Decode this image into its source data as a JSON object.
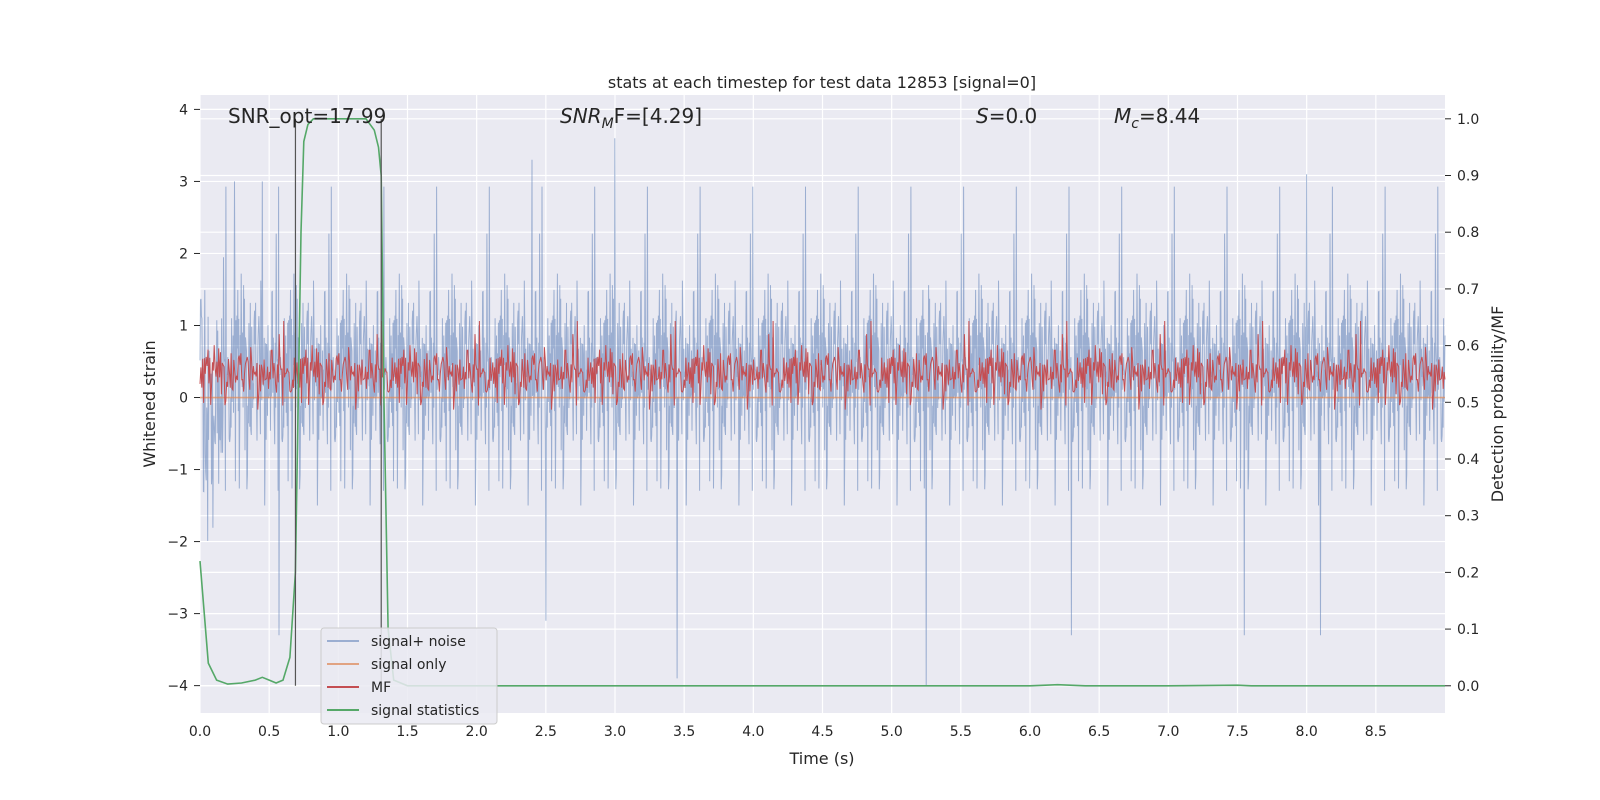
{
  "chart_data": {
    "type": "line",
    "title": "stats at each timestep for test data 12853 [signal=0]",
    "xlabel": "Time (s)",
    "ylabel_left": "Whitened strain",
    "ylabel_right": "Detection probability/MF",
    "xlim": [
      0,
      9.0
    ],
    "ylim_left": [
      -4.38,
      4.2
    ],
    "ylim_right": [
      -0.048,
      1.042
    ],
    "x_ticks": [
      "0.0",
      "0.5",
      "1.0",
      "1.5",
      "2.0",
      "2.5",
      "3.0",
      "3.5",
      "4.0",
      "4.5",
      "5.0",
      "5.5",
      "6.0",
      "6.5",
      "7.0",
      "7.5",
      "8.0",
      "8.5"
    ],
    "y_ticks_left": [
      "4",
      "3",
      "2",
      "1",
      "0",
      "−1",
      "−2",
      "−3",
      "−4"
    ],
    "y_ticks_right": [
      "1.0",
      "0.9",
      "0.8",
      "0.7",
      "0.6",
      "0.5",
      "0.4",
      "0.3",
      "0.2",
      "0.1",
      "0.0"
    ],
    "grid": true,
    "background": "#eaeaf2",
    "annotations": {
      "snr_opt": "SNR_opt=17.99",
      "snr_mf_main": "SNR",
      "snr_mf_sub": "M",
      "snr_mf_tail": "F=[4.29]",
      "s_italic": "S",
      "s_value": "=0.0",
      "mc_main": "M",
      "mc_sub": "c",
      "mc_value": "=8.44"
    },
    "markers_x": [
      0.69,
      1.31
    ],
    "series": [
      {
        "name": "signal+ noise",
        "color": "#4c72b0",
        "alpha": 0.5,
        "axis": "left",
        "kind": "noise",
        "std": 0.85,
        "extremes": [
          [
            0.25,
            3.0
          ],
          [
            0.45,
            3.0
          ],
          [
            0.57,
            -3.3
          ],
          [
            2.4,
            3.3
          ],
          [
            2.5,
            -3.1
          ],
          [
            3.0,
            3.6
          ],
          [
            3.45,
            3.8
          ],
          [
            3.45,
            -3.9
          ],
          [
            5.25,
            3.8
          ],
          [
            5.25,
            -4.0
          ],
          [
            6.3,
            -3.3
          ],
          [
            7.55,
            -3.3
          ],
          [
            8.0,
            3.1
          ],
          [
            8.1,
            -3.3
          ]
        ]
      },
      {
        "name": "signal only",
        "color": "#dd8452",
        "alpha": 0.7,
        "axis": "left",
        "kind": "flat",
        "value": 0.0
      },
      {
        "name": "MF",
        "color": "#c44e52",
        "alpha": 1.0,
        "axis": "right",
        "kind": "noise",
        "mean": 0.54,
        "std": 0.03
      },
      {
        "name": "signal statistics",
        "color": "#55a868",
        "alpha": 1.0,
        "axis": "right",
        "kind": "line",
        "x": [
          0.0,
          0.06,
          0.12,
          0.2,
          0.3,
          0.4,
          0.45,
          0.5,
          0.55,
          0.6,
          0.65,
          0.69,
          0.71,
          0.73,
          0.75,
          0.78,
          0.82,
          1.0,
          1.2,
          1.26,
          1.29,
          1.31,
          1.33,
          1.36,
          1.4,
          1.5,
          2.0,
          3.0,
          4.0,
          5.0,
          6.0,
          6.2,
          6.4,
          7.0,
          7.5,
          7.6,
          8.0,
          8.5,
          9.0
        ],
        "y": [
          0.22,
          0.04,
          0.01,
          0.003,
          0.005,
          0.01,
          0.015,
          0.01,
          0.005,
          0.01,
          0.05,
          0.2,
          0.5,
          0.8,
          0.96,
          0.99,
          1.0,
          1.0,
          1.0,
          0.98,
          0.95,
          0.9,
          0.5,
          0.1,
          0.01,
          0.0,
          0.0,
          0.0,
          0.0,
          0.0,
          0.0,
          0.002,
          0.0,
          0.0,
          0.001,
          0.0,
          0.0,
          0.0,
          0.0
        ]
      }
    ],
    "legend_position": "lower-left"
  }
}
